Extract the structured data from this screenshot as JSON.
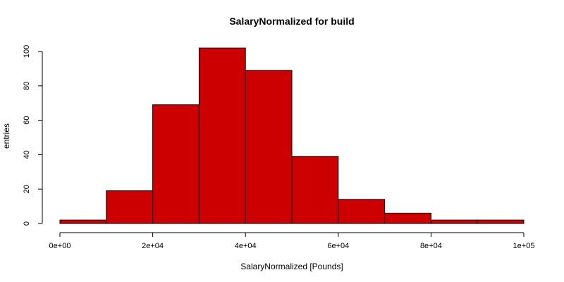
{
  "chart_data": {
    "type": "bar",
    "title": "SalaryNormalized for build",
    "xlabel": "SalaryNormalized [Pounds]",
    "ylabel": "entries",
    "bin_edges": [
      0,
      10000,
      20000,
      30000,
      40000,
      50000,
      60000,
      70000,
      80000,
      90000,
      100000
    ],
    "values": [
      2,
      19,
      69,
      102,
      89,
      39,
      14,
      6,
      2,
      2
    ],
    "xlim": [
      0,
      100000
    ],
    "ylim": [
      0,
      100
    ],
    "x_ticks": [
      0,
      20000,
      40000,
      60000,
      80000,
      100000
    ],
    "x_tick_labels": [
      "0e+00",
      "2e+04",
      "4e+04",
      "6e+04",
      "8e+04",
      "1e+05"
    ],
    "y_ticks": [
      0,
      20,
      40,
      60,
      80,
      100
    ],
    "y_tick_labels": [
      "0",
      "20",
      "40",
      "60",
      "80",
      "100"
    ],
    "bar_color": "#cc0000",
    "grid": false
  }
}
